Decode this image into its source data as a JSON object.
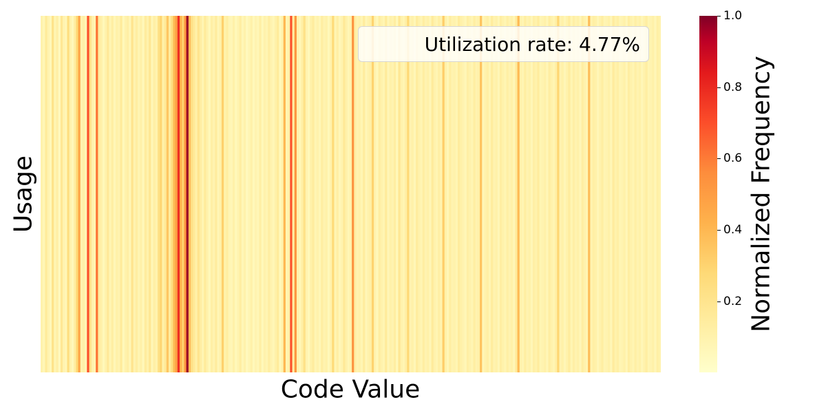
{
  "chart_data": {
    "type": "heatmap",
    "xlabel": "Code Value",
    "ylabel": "Usage",
    "annotation": "Utilization rate: 4.77%",
    "colorbar": {
      "label": "Normalized Frequency",
      "range": [
        0,
        1.0
      ],
      "ticks": [
        "0.2",
        "0.4",
        "0.6",
        "0.8",
        "1.0"
      ],
      "colormap": "YlOrRd"
    },
    "grid": false,
    "legend_placement": "top-right",
    "values": [
      0.09,
      0.06,
      0.14,
      0.08,
      0.05,
      0.19,
      0.07,
      0.11,
      0.04,
      0.16,
      0.08,
      0.06,
      0.22,
      0.09,
      0.05,
      0.12,
      0.25,
      0.42,
      0.08,
      0.1,
      0.06,
      0.62,
      0.2,
      0.09,
      0.07,
      0.55,
      0.13,
      0.1,
      0.05,
      0.09,
      0.15,
      0.07,
      0.12,
      0.06,
      0.1,
      0.08,
      0.14,
      0.05,
      0.09,
      0.11,
      0.06,
      0.18,
      0.08,
      0.12,
      0.07,
      0.1,
      0.05,
      0.13,
      0.09,
      0.16,
      0.06,
      0.11,
      0.08,
      0.2,
      0.26,
      0.1,
      0.15,
      0.31,
      0.13,
      0.22,
      0.35,
      0.44,
      0.7,
      0.38,
      0.27,
      0.46,
      0.95,
      0.34,
      0.2,
      0.15,
      0.1,
      0.18,
      0.12,
      0.07,
      0.14,
      0.09,
      0.05,
      0.11,
      0.08,
      0.13,
      0.06,
      0.1,
      0.28,
      0.09,
      0.12,
      0.07,
      0.06,
      0.1,
      0.05,
      0.08,
      0.12,
      0.06,
      0.09,
      0.04,
      0.07,
      0.1,
      0.05,
      0.08,
      0.06,
      0.11,
      0.05,
      0.09,
      0.07,
      0.12,
      0.08,
      0.06,
      0.1,
      0.14,
      0.05,
      0.09,
      0.36,
      0.07,
      0.1,
      0.62,
      0.12,
      0.47,
      0.09,
      0.06,
      0.11,
      0.2,
      0.08,
      0.05,
      0.1,
      0.13,
      0.07,
      0.09,
      0.06,
      0.12,
      0.08,
      0.1,
      0.05,
      0.09,
      0.24,
      0.07,
      0.11,
      0.06,
      0.08,
      0.15,
      0.1,
      0.06,
      0.09,
      0.48,
      0.12,
      0.08,
      0.1,
      0.07,
      0.13,
      0.06,
      0.09,
      0.11,
      0.27,
      0.08,
      0.05,
      0.12,
      0.09,
      0.07,
      0.14,
      0.06,
      0.1,
      0.08,
      0.12,
      0.05,
      0.16,
      0.09,
      0.07,
      0.11,
      0.25,
      0.08,
      0.1,
      0.06,
      0.13,
      0.09,
      0.07,
      0.12,
      0.08,
      0.1,
      0.06,
      0.14,
      0.09,
      0.07,
      0.11,
      0.08,
      0.29,
      0.1,
      0.06,
      0.12,
      0.08,
      0.09,
      0.07,
      0.13,
      0.1,
      0.08,
      0.06,
      0.11,
      0.09,
      0.07,
      0.12,
      0.08,
      0.1,
      0.32,
      0.06,
      0.09,
      0.11,
      0.07,
      0.13,
      0.08,
      0.1,
      0.06,
      0.12,
      0.09,
      0.07,
      0.11,
      0.08,
      0.1,
      0.06,
      0.14,
      0.35,
      0.09,
      0.07,
      0.12,
      0.08,
      0.1,
      0.06,
      0.11,
      0.09,
      0.13,
      0.07,
      0.08,
      0.1,
      0.06,
      0.12,
      0.09,
      0.07,
      0.11,
      0.26,
      0.08,
      0.1,
      0.06,
      0.09,
      0.13,
      0.07,
      0.11,
      0.08,
      0.1,
      0.06,
      0.12,
      0.09,
      0.07,
      0.34,
      0.08,
      0.11,
      0.1,
      0.06,
      0.09,
      0.12,
      0.07,
      0.08,
      0.1,
      0.06,
      0.13,
      0.09,
      0.11,
      0.07,
      0.08,
      0.1,
      0.06,
      0.12,
      0.09,
      0.07,
      0.11,
      0.08,
      0.1,
      0.06,
      0.09,
      0.12,
      0.07,
      0.08,
      0.1,
      0.06,
      0.11,
      0.09
    ],
    "tint": "#ffffcc",
    "color_stops": [
      "#ffffcc",
      "#ffeda0",
      "#fed976",
      "#feb24c",
      "#fd8d3c",
      "#fc4e2a",
      "#e31a1c",
      "#bd0026",
      "#800026"
    ]
  }
}
